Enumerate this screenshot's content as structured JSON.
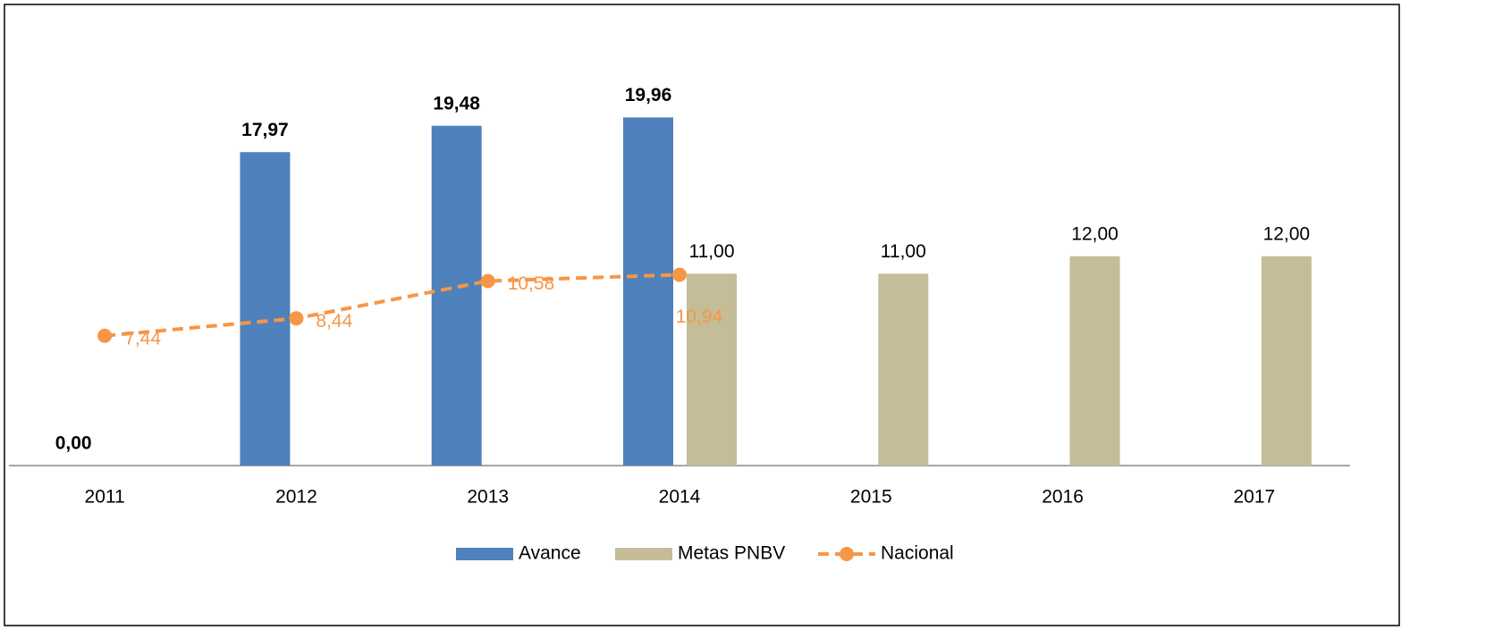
{
  "chart_data": {
    "type": "bar",
    "categories": [
      "2011",
      "2012",
      "2013",
      "2014",
      "2015",
      "2016",
      "2017"
    ],
    "ylim": [
      0,
      25
    ],
    "series": [
      {
        "name": "Avance",
        "color": "#4f81bd",
        "type": "bar",
        "values": [
          0.0,
          17.97,
          19.48,
          19.96,
          null,
          null,
          null
        ],
        "value_labels": [
          "0,00",
          "17,97",
          "19,48",
          "19,96",
          null,
          null,
          null
        ]
      },
      {
        "name": "Metas PNBV",
        "color": "#c4bd97",
        "type": "bar",
        "values": [
          null,
          null,
          null,
          11.0,
          11.0,
          12.0,
          12.0
        ],
        "value_labels": [
          null,
          null,
          null,
          "11,00",
          "11,00",
          "12,00",
          "12,00"
        ]
      },
      {
        "name": "Nacional",
        "color": "#f79646",
        "type": "line",
        "values": [
          7.44,
          8.44,
          10.58,
          10.94,
          null,
          null,
          null
        ],
        "value_labels": [
          "7,44",
          "8,44",
          "10,58",
          "10,94",
          null,
          null,
          null
        ]
      }
    ],
    "legend": "bottom"
  }
}
